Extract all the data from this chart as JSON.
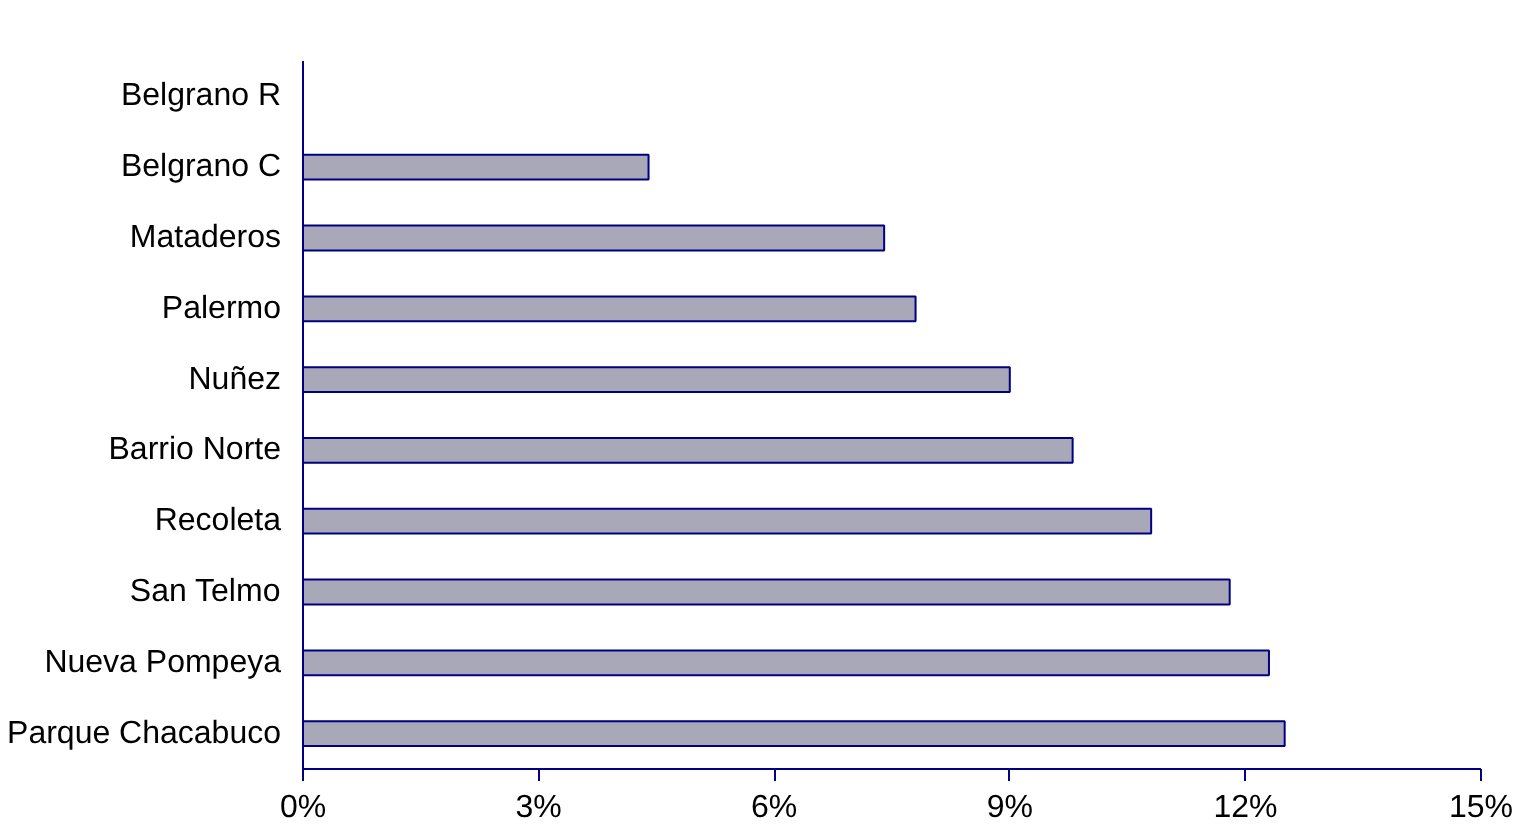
{
  "chart_data": {
    "type": "bar",
    "orientation": "horizontal",
    "categories": [
      "Belgrano R",
      "Belgrano C",
      "Mataderos",
      "Palermo",
      "Nuñez",
      "Barrio Norte",
      "Recoleta",
      "San Telmo",
      "Nueva Pompeya",
      "Parque Chacabuco"
    ],
    "values": [
      null,
      4.4,
      7.4,
      7.8,
      9.0,
      9.8,
      10.8,
      11.8,
      12.3,
      12.5
    ],
    "color": "#a8a8b8",
    "xlim": [
      0,
      15
    ],
    "xticks": [
      {
        "value": 0,
        "label": "0%"
      },
      {
        "value": 3,
        "label": "3%"
      },
      {
        "value": 6,
        "label": "6%"
      },
      {
        "value": 9,
        "label": "9%"
      },
      {
        "value": 12,
        "label": "12%"
      },
      {
        "value": 15,
        "label": "15%"
      }
    ],
    "grid": false
  }
}
